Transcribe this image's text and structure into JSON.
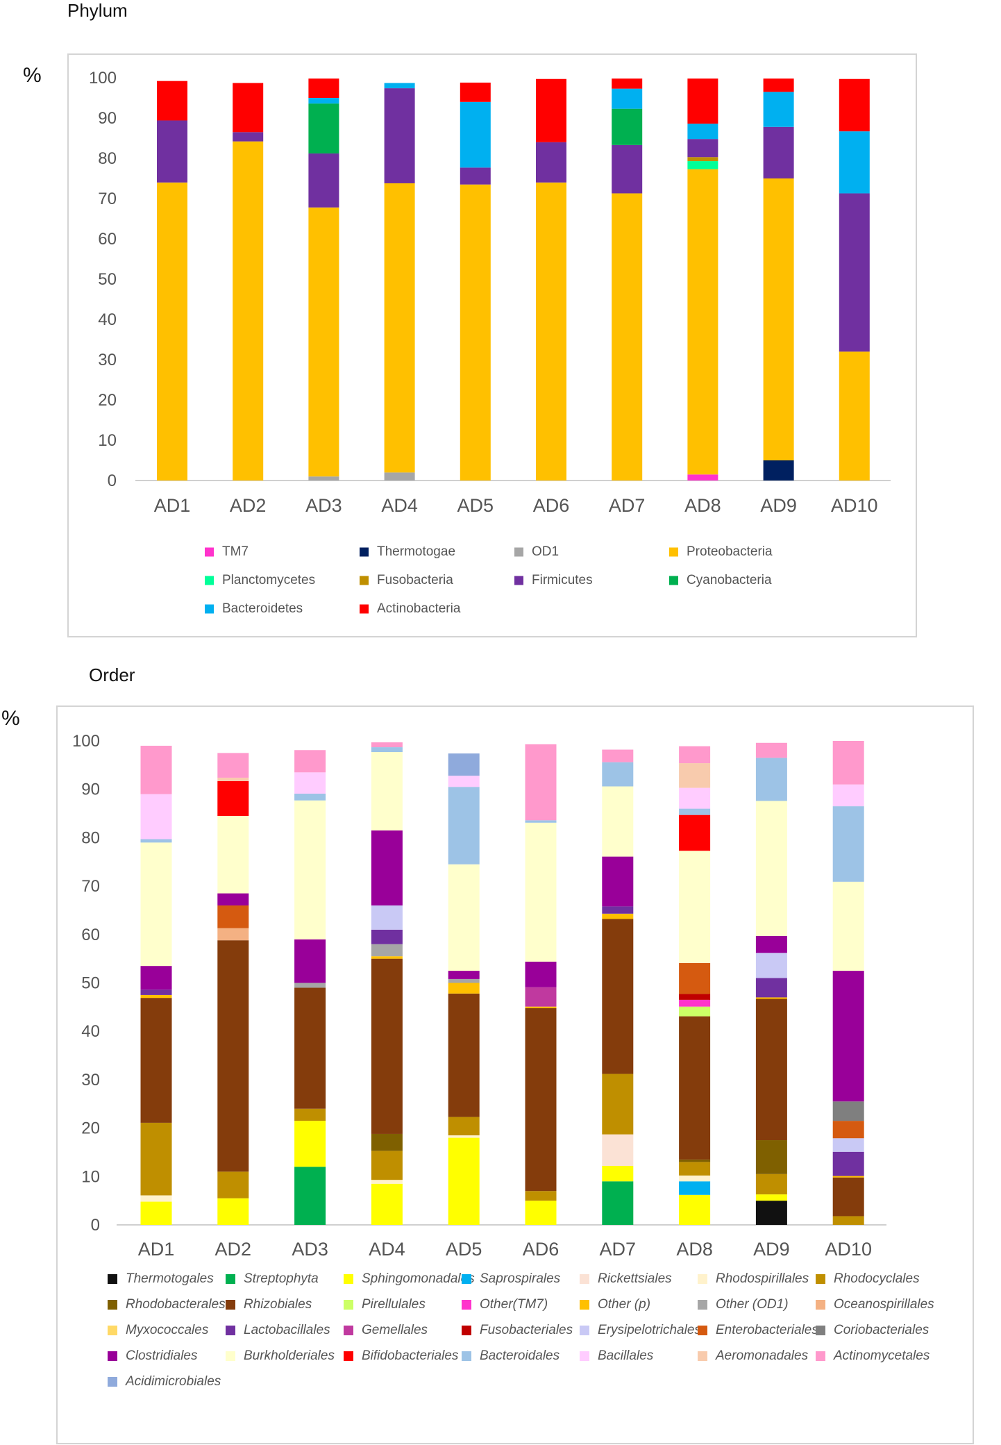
{
  "chart_data": [
    {
      "type": "bar",
      "stacked": true,
      "title": "Phylum",
      "ylabel": "%",
      "ylim": [
        0,
        100
      ],
      "yticks": [
        0,
        10,
        20,
        30,
        40,
        50,
        60,
        70,
        80,
        90,
        100
      ],
      "categories": [
        "AD1",
        "AD2",
        "AD3",
        "AD4",
        "AD5",
        "AD6",
        "AD7",
        "AD8",
        "AD9",
        "AD10"
      ],
      "legend_order": [
        "TM7",
        "Thermotogae",
        "OD1",
        "Proteobacteria",
        "Planctomycetes",
        "Fusobacteria",
        "Firmicutes",
        "Cyanobacteria",
        "Bacteroidetes",
        "Actinobacteria"
      ],
      "series": [
        {
          "name": "TM7",
          "color": "#ff33cc",
          "values": [
            0,
            0,
            0,
            0,
            0,
            0,
            0,
            1.5,
            0,
            0
          ]
        },
        {
          "name": "Thermotogae",
          "color": "#002060",
          "values": [
            0,
            0,
            0,
            0,
            0,
            0,
            0,
            0,
            5,
            0
          ]
        },
        {
          "name": "OD1",
          "color": "#a6a6a6",
          "values": [
            0,
            0,
            1,
            2,
            0,
            0,
            0,
            0,
            0,
            0
          ]
        },
        {
          "name": "Proteobacteria",
          "color": "#ffc000",
          "values": [
            74,
            84.2,
            66.8,
            71.8,
            73.5,
            74,
            71.3,
            75.8,
            70,
            32
          ]
        },
        {
          "name": "Planctomycetes",
          "color": "#00ff99",
          "values": [
            0,
            0,
            0,
            0,
            0,
            0,
            0,
            2,
            0,
            0
          ]
        },
        {
          "name": "Fusobacteria",
          "color": "#bf8f00",
          "values": [
            0,
            0,
            0,
            0,
            0,
            0,
            0,
            1,
            0,
            0
          ]
        },
        {
          "name": "Firmicutes",
          "color": "#7030a0",
          "values": [
            15.4,
            2.3,
            13.4,
            23.6,
            4.2,
            10,
            12,
            4.5,
            12.8,
            39.3
          ]
        },
        {
          "name": "Cyanobacteria",
          "color": "#00b050",
          "values": [
            0,
            0,
            12.4,
            0,
            0,
            0,
            9,
            0,
            0,
            0
          ]
        },
        {
          "name": "Bacteroidetes",
          "color": "#00b0f0",
          "values": [
            0,
            0,
            1.4,
            1.3,
            16.3,
            0,
            5,
            3.8,
            8.7,
            15.4
          ]
        },
        {
          "name": "Actinobacteria",
          "color": "#ff0000",
          "values": [
            9.8,
            12.2,
            4.8,
            0,
            4.8,
            15.7,
            2.5,
            11.2,
            3.3,
            13
          ]
        }
      ]
    },
    {
      "type": "bar",
      "stacked": true,
      "title": "Order",
      "ylabel": "%",
      "ylim": [
        0,
        100
      ],
      "yticks": [
        0,
        10,
        20,
        30,
        40,
        50,
        60,
        70,
        80,
        90,
        100
      ],
      "categories": [
        "AD1",
        "AD2",
        "AD3",
        "AD4",
        "AD5",
        "AD6",
        "AD7",
        "AD8",
        "AD9",
        "AD10"
      ],
      "legend_order": [
        "Thermotogales",
        "Streptophyta",
        "Sphingomonadales",
        "Saprospirales",
        "Rickettsiales",
        "Rhodospirillales",
        "Rhodocyclales",
        "Rhodobacterales",
        "Rhizobiales",
        "Pirellulales",
        "Other(TM7)",
        "Other (p)",
        "Other (OD1)",
        "Oceanospirillales",
        "Myxococcales",
        "Lactobacillales",
        "Gemellales",
        "Fusobacteriales",
        "Erysipelotrichales",
        "Enterobacteriales",
        "Coriobacteriales",
        "Clostridiales",
        "Burkholderiales",
        "Bifidobacteriales",
        "Bacteroidales",
        "Bacillales",
        "Aeromonadales",
        "Actinomycetales",
        "Acidimicrobiales"
      ],
      "series": [
        {
          "name": "Thermotogales",
          "color": "#111111",
          "values": [
            0,
            0,
            0,
            0,
            0,
            0,
            0,
            0,
            5,
            0
          ]
        },
        {
          "name": "Streptophyta",
          "color": "#00b050",
          "values": [
            0,
            0,
            12,
            0,
            0,
            0,
            9,
            0,
            0,
            0
          ]
        },
        {
          "name": "Sphingomonadales",
          "color": "#ffff00",
          "values": [
            4.8,
            5.5,
            9.5,
            8.5,
            18,
            5,
            3.2,
            6.2,
            1.3,
            0
          ]
        },
        {
          "name": "Saprospirales",
          "color": "#00b0f0",
          "values": [
            0,
            0,
            0,
            0,
            0,
            0,
            0,
            2.8,
            0,
            0
          ]
        },
        {
          "name": "Rickettsiales",
          "color": "#fbe2d5",
          "values": [
            0,
            0,
            0,
            0,
            0,
            0,
            6.5,
            0,
            0,
            0
          ]
        },
        {
          "name": "Rhodospirillales",
          "color": "#fff2cc",
          "values": [
            1.3,
            0,
            0,
            0.8,
            0.5,
            0,
            0,
            1.2,
            0,
            0
          ]
        },
        {
          "name": "Rhodocyclales",
          "color": "#bf8f00",
          "values": [
            15,
            5.5,
            2.5,
            6,
            3.8,
            2,
            12.5,
            2.8,
            4.2,
            1.8
          ]
        },
        {
          "name": "Rhodobacterales",
          "color": "#7f6000",
          "values": [
            0,
            0,
            0,
            3.5,
            0,
            0,
            0,
            0.5,
            7,
            0
          ]
        },
        {
          "name": "Rhizobiales",
          "color": "#843c0c",
          "values": [
            25.8,
            47.8,
            25,
            36.2,
            25.5,
            37.8,
            32,
            29.6,
            29.2,
            8
          ]
        },
        {
          "name": "Pirellulales",
          "color": "#ccff66",
          "values": [
            0,
            0,
            0,
            0,
            0,
            0,
            0,
            2,
            0,
            0
          ]
        },
        {
          "name": "Other(TM7)",
          "color": "#ff33cc",
          "values": [
            0,
            0,
            0,
            0,
            0,
            0,
            0,
            1.4,
            0,
            0
          ]
        },
        {
          "name": "Other (p)",
          "color": "#ffc000",
          "values": [
            0.6,
            0,
            0,
            0.5,
            2.2,
            0.3,
            1.1,
            0,
            0.3,
            0.3
          ]
        },
        {
          "name": "Other (OD1)",
          "color": "#a6a6a6",
          "values": [
            0,
            0,
            1,
            2.5,
            0.8,
            0,
            0,
            0,
            0,
            0
          ]
        },
        {
          "name": "Oceanospirillales",
          "color": "#f4b183",
          "values": [
            0,
            2.5,
            0,
            0,
            0,
            0,
            0,
            0,
            0,
            0
          ]
        },
        {
          "name": "Myxococcales",
          "color": "#ffd966",
          "values": [
            0,
            0,
            0,
            0,
            0,
            0,
            0,
            0,
            0,
            0
          ]
        },
        {
          "name": "Lactobacillales",
          "color": "#7030a0",
          "values": [
            1.1,
            0,
            0,
            3,
            0,
            0,
            1.5,
            0,
            4,
            5
          ]
        },
        {
          "name": "Gemellales",
          "color": "#c0399f",
          "values": [
            0,
            0,
            0,
            0,
            0,
            4,
            0,
            0,
            0,
            0
          ]
        },
        {
          "name": "Fusobacteriales",
          "color": "#c00000",
          "values": [
            0,
            0,
            0,
            0,
            0,
            0,
            0,
            1.2,
            0,
            0
          ]
        },
        {
          "name": "Erysipelotrichales",
          "color": "#c9c9f5",
          "values": [
            0,
            0,
            0,
            5,
            0,
            0,
            0,
            0,
            5.2,
            2.8
          ]
        },
        {
          "name": "Enterobacteriales",
          "color": "#d55a10",
          "values": [
            0,
            4.7,
            0,
            0,
            0,
            0,
            0,
            6.4,
            0,
            3.6
          ]
        },
        {
          "name": "Coriobacteriales",
          "color": "#7f7f7f",
          "values": [
            0,
            0,
            0,
            0,
            0,
            0,
            0,
            0,
            0,
            4
          ]
        },
        {
          "name": "Clostridiales",
          "color": "#990099",
          "values": [
            4.9,
            2.5,
            9,
            15.5,
            1.7,
            5.3,
            10.3,
            0,
            3.5,
            27
          ]
        },
        {
          "name": "Burkholderiales",
          "color": "#ffffcc",
          "values": [
            25.5,
            16,
            28.7,
            16.2,
            22,
            28.7,
            14.5,
            23.2,
            27.9,
            18.4
          ]
        },
        {
          "name": "Bifidobacteriales",
          "color": "#ff0000",
          "values": [
            0,
            7.2,
            0,
            0,
            0,
            0,
            0,
            7.4,
            0,
            0
          ]
        },
        {
          "name": "Bacteroidales",
          "color": "#9dc3e6",
          "values": [
            0.7,
            0,
            1.4,
            1,
            16,
            0.5,
            5,
            1.3,
            8.9,
            15.6
          ]
        },
        {
          "name": "Bacillales",
          "color": "#ffccff",
          "values": [
            9.3,
            0,
            4.4,
            0,
            2.3,
            0,
            0,
            4.3,
            0,
            4.5
          ]
        },
        {
          "name": "Aeromonadales",
          "color": "#f8cbad",
          "values": [
            0,
            0.7,
            0,
            0,
            0,
            0,
            0,
            5.1,
            0,
            0
          ]
        },
        {
          "name": "Actinomycetales",
          "color": "#ff99cc",
          "values": [
            10,
            5.1,
            4.6,
            1,
            0,
            15.7,
            2.6,
            3.5,
            3.1,
            9
          ]
        },
        {
          "name": "Acidimicrobiales",
          "color": "#8faadc",
          "values": [
            0,
            0,
            0,
            0,
            4.6,
            0,
            0,
            0,
            0,
            0
          ]
        }
      ]
    }
  ]
}
